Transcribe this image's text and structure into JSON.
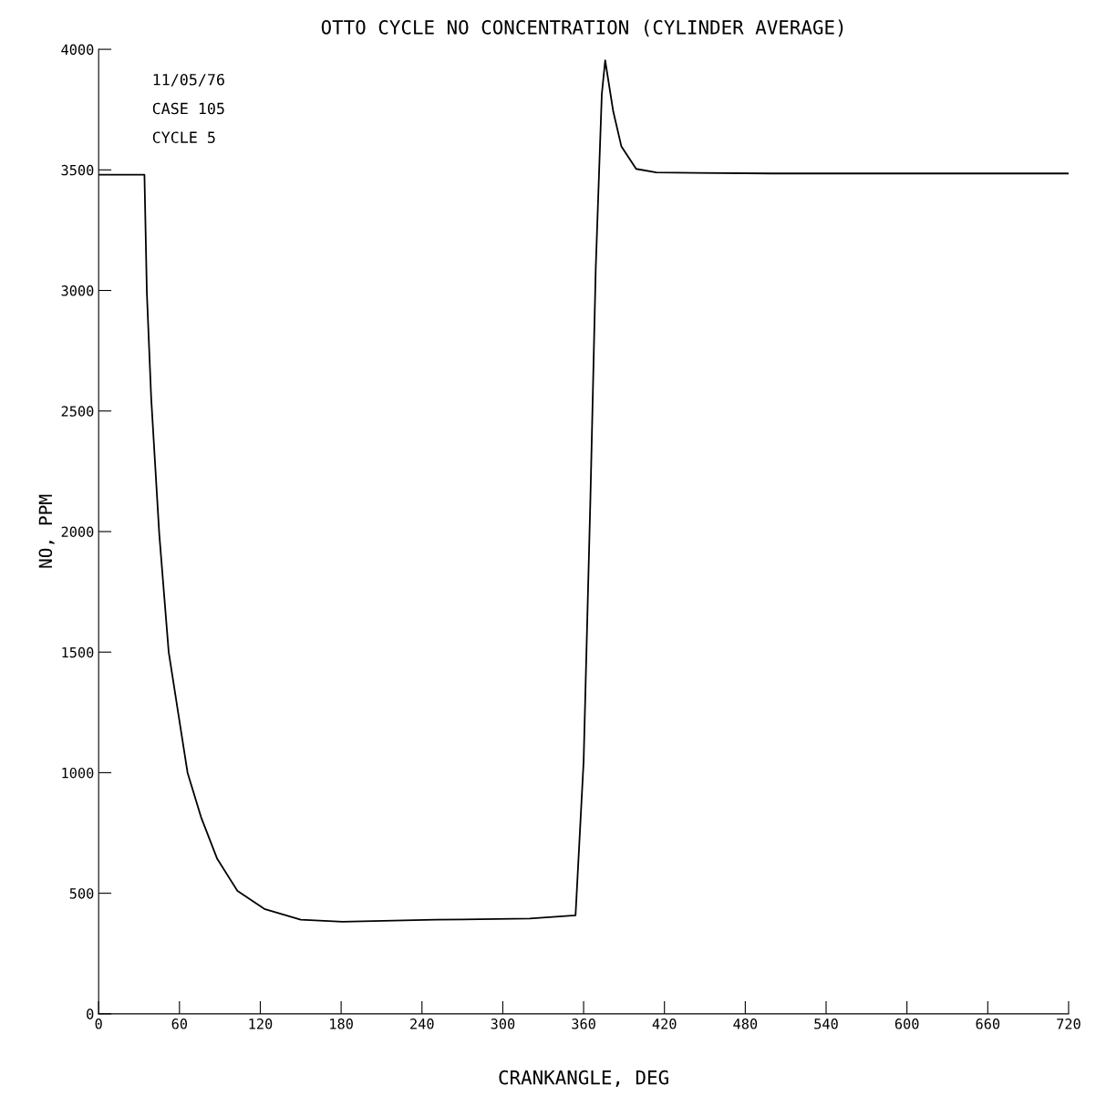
{
  "chart_data": {
    "type": "line",
    "title": "OTTO CYCLE NO CONCENTRATION (CYLINDER AVERAGE)",
    "xlabel": "CRANKANGLE, DEG",
    "ylabel": "NO, PPM",
    "annotations": [
      "11/05/76",
      "CASE 105",
      "CYCLE 5"
    ],
    "xlim": [
      0,
      720
    ],
    "ylim": [
      0,
      4000
    ],
    "xticks": [
      0,
      60,
      120,
      180,
      240,
      300,
      360,
      420,
      480,
      540,
      600,
      660,
      720
    ],
    "yticks": [
      0,
      500,
      1000,
      1500,
      2000,
      2500,
      3000,
      3500,
      4000
    ],
    "grid": false,
    "legend": false,
    "series": [
      {
        "color": "#000000",
        "x": [
          0,
          34,
          35.8,
          39,
          45,
          52,
          59,
          66,
          76,
          88,
          103,
          123,
          150,
          181,
          250,
          320,
          354,
          360,
          365,
          369,
          373.5,
          376,
          382,
          388,
          399,
          414,
          500,
          600,
          720
        ],
        "values": [
          3480,
          3480,
          2990,
          2555,
          1990,
          1500,
          1250,
          1000,
          816,
          643,
          510,
          435,
          390,
          382,
          390,
          395,
          408,
          1047,
          2128,
          3092,
          3814,
          3954,
          3742,
          3598,
          3504,
          3489,
          3485,
          3485,
          3485
        ]
      }
    ]
  }
}
